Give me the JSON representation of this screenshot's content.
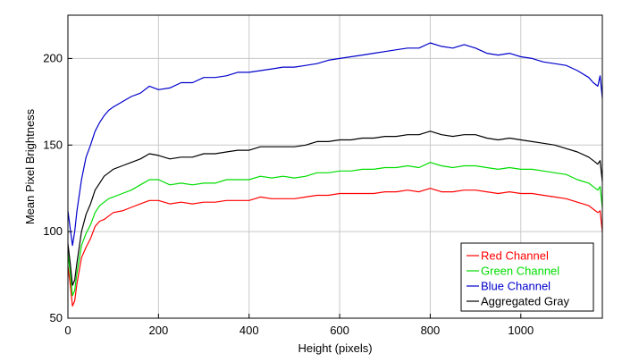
{
  "chart_data": {
    "type": "line",
    "title": "",
    "xlabel": "Height (pixels)",
    "ylabel": "Mean Pixel Brightness",
    "xlim": [
      0,
      1180
    ],
    "ylim": [
      50,
      225
    ],
    "xticks": [
      0,
      200,
      400,
      600,
      800,
      1000
    ],
    "yticks": [
      50,
      100,
      150,
      200
    ],
    "grid": true,
    "legend": "bottom-right",
    "x": [
      0,
      5,
      10,
      15,
      20,
      30,
      40,
      50,
      60,
      70,
      80,
      90,
      100,
      120,
      140,
      160,
      180,
      200,
      225,
      250,
      275,
      300,
      325,
      350,
      375,
      400,
      425,
      450,
      475,
      500,
      525,
      550,
      575,
      600,
      625,
      650,
      675,
      700,
      725,
      750,
      775,
      800,
      825,
      850,
      875,
      900,
      925,
      950,
      975,
      1000,
      1025,
      1050,
      1075,
      1100,
      1125,
      1150,
      1160,
      1170,
      1175,
      1180
    ],
    "series": [
      {
        "name": "Red Channel",
        "color": "#ff0000",
        "values": [
          80,
          70,
          57,
          60,
          70,
          85,
          91,
          96,
          103,
          106,
          107,
          109,
          111,
          112,
          114,
          116,
          118,
          118,
          116,
          117,
          116,
          117,
          117,
          118,
          118,
          118,
          120,
          119,
          119,
          119,
          120,
          121,
          121,
          122,
          122,
          122,
          122,
          123,
          123,
          124,
          123,
          125,
          123,
          123,
          124,
          124,
          123,
          122,
          123,
          122,
          122,
          121,
          120,
          119,
          117,
          115,
          113,
          111,
          112,
          100
        ]
      },
      {
        "name": "Green Channel",
        "color": "#00dd00",
        "values": [
          88,
          76,
          63,
          66,
          76,
          92,
          99,
          104,
          111,
          115,
          117,
          119,
          120,
          122,
          124,
          127,
          130,
          130,
          127,
          128,
          127,
          128,
          128,
          130,
          130,
          130,
          132,
          131,
          132,
          131,
          132,
          134,
          134,
          135,
          135,
          136,
          136,
          137,
          137,
          138,
          137,
          140,
          138,
          137,
          138,
          138,
          137,
          136,
          137,
          136,
          136,
          135,
          134,
          133,
          130,
          128,
          126,
          124,
          126,
          114
        ]
      },
      {
        "name": "Blue Channel",
        "color": "#0000cc",
        "values": [
          112,
          102,
          92,
          100,
          112,
          130,
          143,
          150,
          158,
          163,
          167,
          170,
          172,
          175,
          178,
          180,
          184,
          182,
          183,
          186,
          186,
          189,
          189,
          190,
          192,
          192,
          193,
          194,
          195,
          195,
          196,
          197,
          199,
          200,
          201,
          202,
          203,
          204,
          205,
          206,
          206,
          209,
          207,
          206,
          208,
          206,
          203,
          202,
          203,
          201,
          200,
          198,
          197,
          196,
          193,
          189,
          186,
          184,
          190,
          177
        ]
      },
      {
        "name": "Aggregated Gray",
        "color": "#000000",
        "values": [
          93,
          82,
          69,
          72,
          82,
          100,
          110,
          116,
          124,
          128,
          132,
          134,
          136,
          138,
          140,
          142,
          145,
          144,
          142,
          143,
          143,
          145,
          145,
          146,
          147,
          147,
          149,
          149,
          149,
          149,
          150,
          152,
          152,
          153,
          153,
          154,
          154,
          155,
          155,
          156,
          156,
          158,
          156,
          155,
          156,
          156,
          154,
          153,
          154,
          153,
          152,
          151,
          150,
          148,
          146,
          143,
          141,
          139,
          141,
          129
        ]
      }
    ]
  }
}
